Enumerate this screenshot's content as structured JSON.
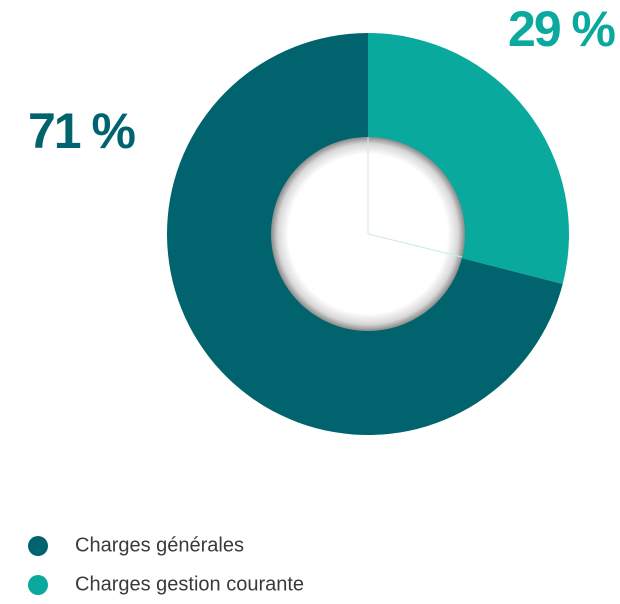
{
  "chart_data": {
    "type": "pie",
    "donut": true,
    "categories": [
      "Charges générales",
      "Charges gestion courante"
    ],
    "values": [
      71,
      29
    ],
    "value_labels": [
      "71 %",
      "29 %"
    ],
    "colors": [
      "#01636e",
      "#0aa99e"
    ]
  }
}
